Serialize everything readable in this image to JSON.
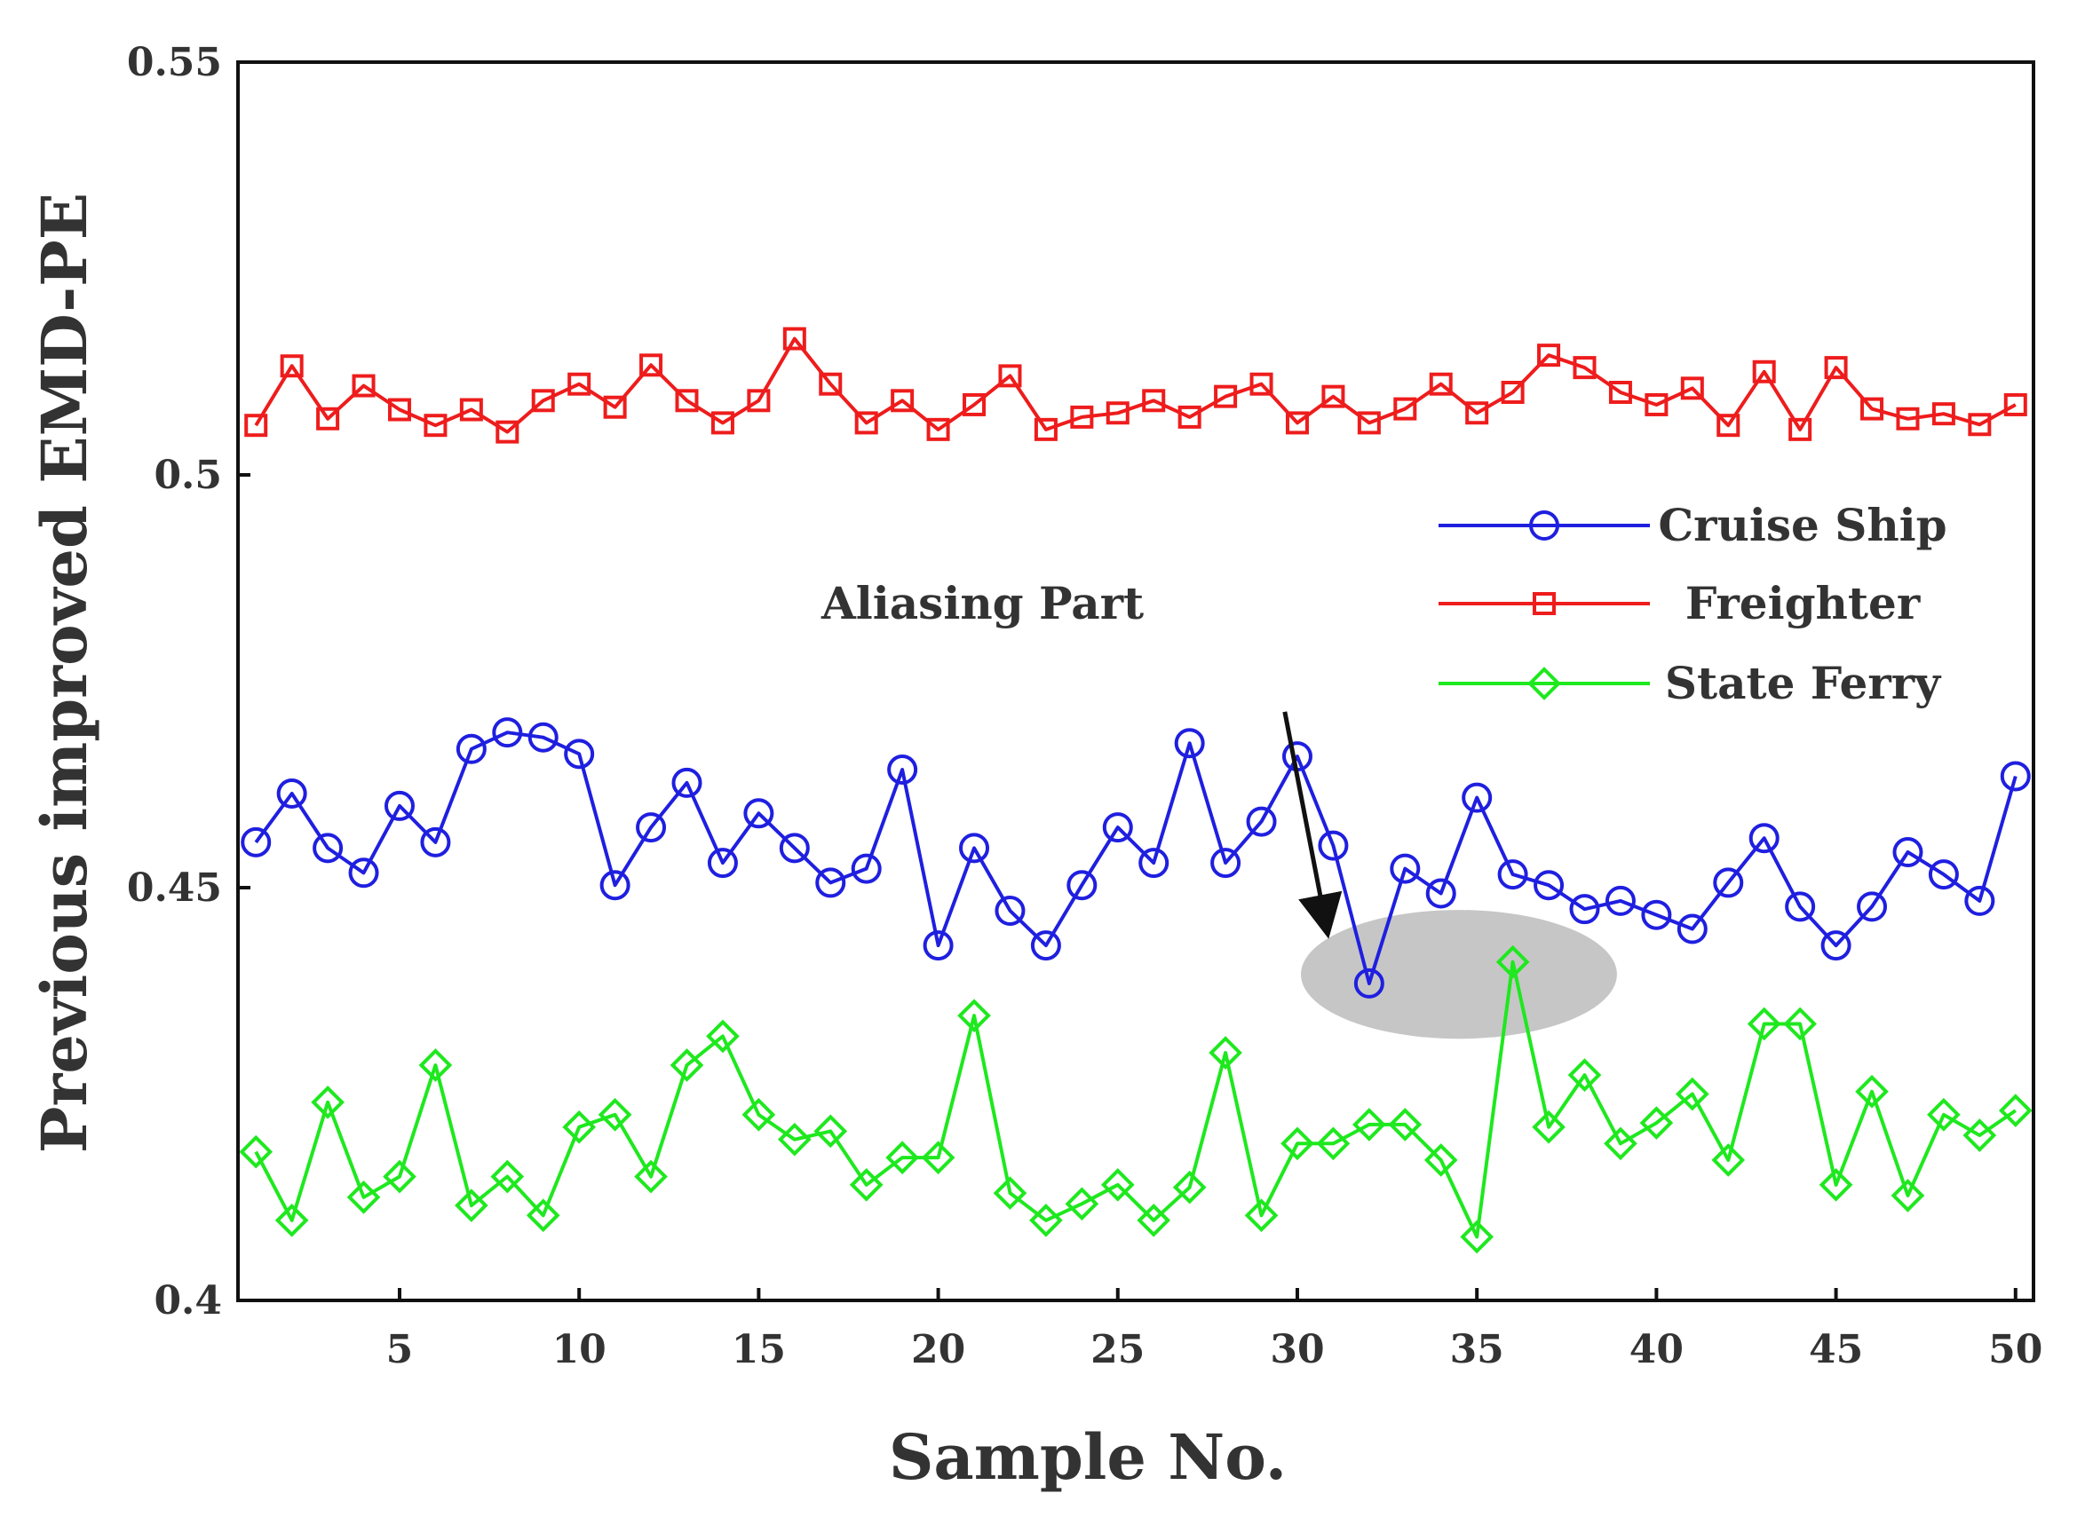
{
  "chart_data": {
    "type": "line",
    "title": "",
    "xlabel": "Sample No.",
    "ylabel": "Previous improved EMD-PE",
    "xlim": [
      0.5,
      50.5
    ],
    "ylim": [
      0.4,
      0.55
    ],
    "xticks": [
      5,
      10,
      15,
      20,
      25,
      30,
      35,
      40,
      45,
      50
    ],
    "xtick_labels": [
      "5",
      "10",
      "15",
      "20",
      "25",
      "30",
      "35",
      "40",
      "45",
      "50"
    ],
    "yticks": [
      0.4,
      0.45,
      0.5,
      0.55
    ],
    "ytick_labels": [
      "0.4",
      "0.45",
      "0.5",
      "0.55"
    ],
    "grid": false,
    "legend_position": "right",
    "x": [
      1,
      2,
      3,
      4,
      5,
      6,
      7,
      8,
      9,
      10,
      11,
      12,
      13,
      14,
      15,
      16,
      17,
      18,
      19,
      20,
      21,
      22,
      23,
      24,
      25,
      26,
      27,
      28,
      29,
      30,
      31,
      32,
      33,
      34,
      35,
      36,
      37,
      38,
      39,
      40,
      41,
      42,
      43,
      44,
      45,
      46,
      47,
      48,
      49,
      50
    ],
    "series": [
      {
        "name": "Cruise Ship",
        "color": "#1f1fe0",
        "marker": "circle",
        "values": [
          0.4555,
          0.4614,
          0.4548,
          0.4518,
          0.4599,
          0.4555,
          0.4668,
          0.4688,
          0.4682,
          0.4662,
          0.4503,
          0.4573,
          0.4627,
          0.453,
          0.459,
          0.4548,
          0.4506,
          0.4523,
          0.4643,
          0.443,
          0.4548,
          0.4472,
          0.443,
          0.4503,
          0.4573,
          0.453,
          0.4675,
          0.453,
          0.458,
          0.4659,
          0.4551,
          0.4384,
          0.4523,
          0.4493,
          0.4609,
          0.4516,
          0.4503,
          0.4474,
          0.4484,
          0.4467,
          0.445,
          0.4506,
          0.456,
          0.4477,
          0.443,
          0.4477,
          0.4543,
          0.4516,
          0.4484,
          0.4635
        ]
      },
      {
        "name": "Freighter",
        "color": "#ee1c1c",
        "marker": "square",
        "values": [
          0.506,
          0.5132,
          0.5068,
          0.5108,
          0.5079,
          0.506,
          0.5079,
          0.5052,
          0.509,
          0.511,
          0.5082,
          0.5133,
          0.509,
          0.5063,
          0.509,
          0.5165,
          0.511,
          0.5063,
          0.509,
          0.5055,
          0.5085,
          0.512,
          0.5055,
          0.507,
          0.5075,
          0.509,
          0.507,
          0.5095,
          0.511,
          0.5063,
          0.5095,
          0.5063,
          0.508,
          0.511,
          0.5075,
          0.51,
          0.5145,
          0.513,
          0.51,
          0.5085,
          0.5105,
          0.506,
          0.5125,
          0.5055,
          0.513,
          0.508,
          0.5068,
          0.5074,
          0.5061,
          0.5085
        ]
      },
      {
        "name": "State Ferry",
        "color": "#1ee81e",
        "marker": "diamond",
        "values": [
          0.418,
          0.4097,
          0.424,
          0.4125,
          0.415,
          0.4285,
          0.4115,
          0.415,
          0.4103,
          0.421,
          0.4225,
          0.415,
          0.4285,
          0.432,
          0.4225,
          0.4195,
          0.4205,
          0.414,
          0.4173,
          0.4173,
          0.4345,
          0.413,
          0.4097,
          0.4117,
          0.414,
          0.4097,
          0.4137,
          0.43,
          0.4103,
          0.419,
          0.419,
          0.4213,
          0.4213,
          0.417,
          0.4077,
          0.441,
          0.421,
          0.4273,
          0.419,
          0.4215,
          0.425,
          0.417,
          0.4335,
          0.4335,
          0.414,
          0.4253,
          0.4127,
          0.4225,
          0.42,
          0.423
        ]
      }
    ],
    "annotations": [
      {
        "text": "Aliasing Part",
        "region_center": {
          "x": 34.5,
          "y": 0.4395
        },
        "region_radius": {
          "x": 4.4,
          "y": 0.0078
        },
        "arrow_tail": {
          "x": 29.7,
          "y": 0.4713
        }
      }
    ],
    "colors": {
      "axis": "#111111",
      "region": "#c6c6c6"
    }
  }
}
